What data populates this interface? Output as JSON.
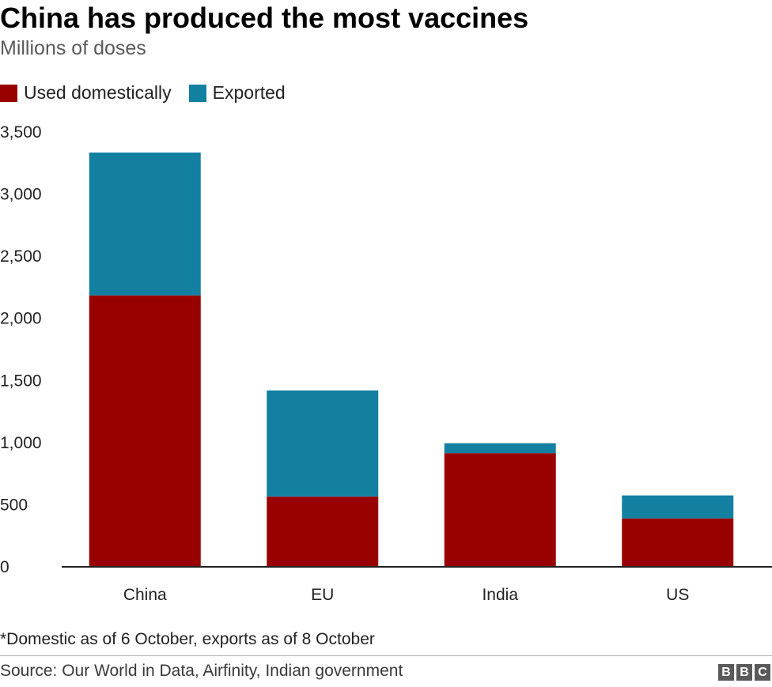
{
  "header": {
    "title": "China has produced the most vaccines",
    "subtitle": "Millions of doses"
  },
  "colors": {
    "domestic": "#990000",
    "exported": "#1380a1",
    "axis": "#222222",
    "grid": "#dddddd"
  },
  "chart_data": {
    "type": "bar",
    "stacked": true,
    "title": "China has produced the most vaccines",
    "subtitle": "Millions of doses",
    "xlabel": "",
    "ylabel": "Millions of doses",
    "categories": [
      "China",
      "EU",
      "India",
      "US"
    ],
    "series": [
      {
        "name": "Used domestically",
        "values": [
          2185,
          565,
          915,
          390
        ]
      },
      {
        "name": "Exported",
        "values": [
          1150,
          855,
          80,
          185
        ]
      }
    ],
    "ylim": [
      0,
      3500
    ],
    "yticks": [
      0,
      500,
      1000,
      1500,
      2000,
      2500,
      3000,
      3500
    ],
    "ytick_labels": [
      "0",
      "500",
      "1,000",
      "1,500",
      "2,000",
      "2,500",
      "3,000",
      "3,500"
    ],
    "grid": false,
    "legend": "top-left"
  },
  "footer": {
    "note": "*Domestic as of 6 October, exports as of 8 October",
    "source": "Source: Our World in Data, Airfinity, Indian government",
    "logo_letters": [
      "B",
      "B",
      "C"
    ]
  }
}
